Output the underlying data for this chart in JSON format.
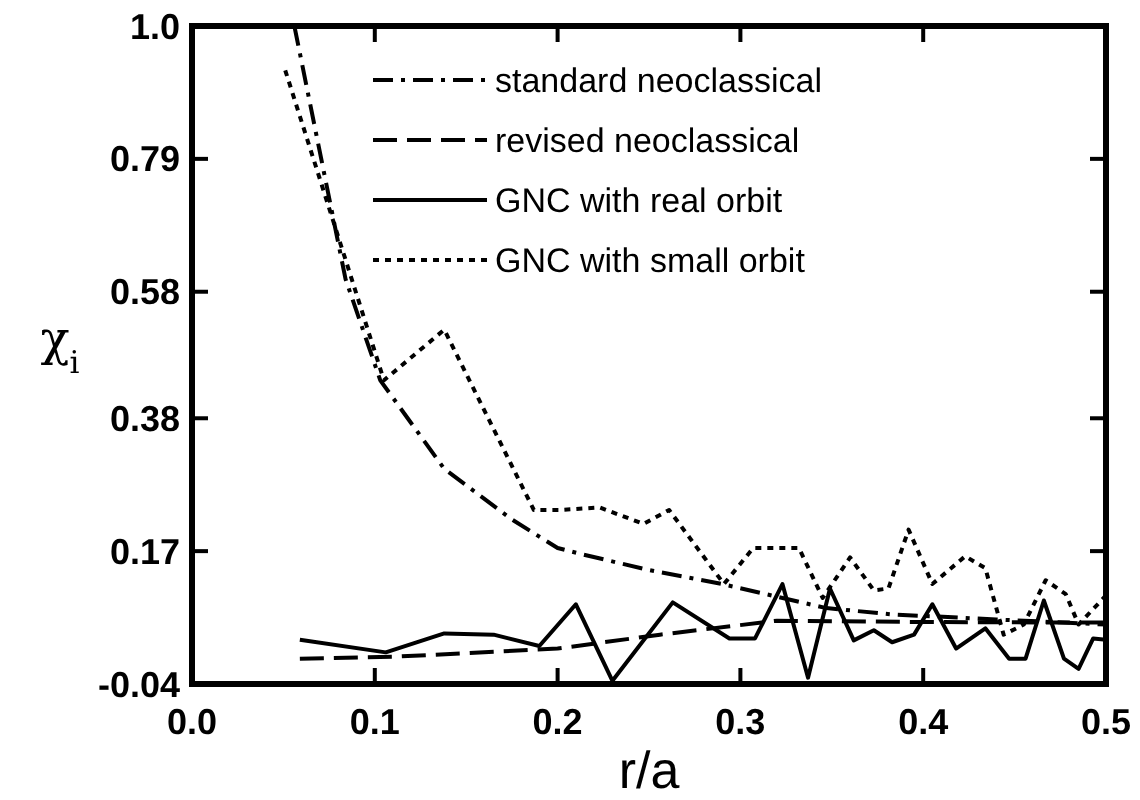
{
  "chart_data": {
    "type": "line",
    "xlabel": "r/a",
    "ylabel": "χ$_{i}$",
    "xlim": [
      0,
      0.5
    ],
    "ylim": [
      -0.04,
      1.0
    ],
    "xticks": [
      {
        "value": 0,
        "label": "0.0"
      },
      0.1,
      0.2,
      0.3,
      0.4,
      0.5
    ],
    "yticks": [
      -0.04,
      0.17,
      0.38,
      0.58,
      0.79,
      {
        "value": 1,
        "label": "1.0"
      }
    ],
    "legend": "top",
    "grid": false,
    "series": [
      {
        "name": "standard neoclassical",
        "color": "#000000",
        "line_style": "dashdot",
        "x": [
          0.056,
          0.084,
          0.103,
          0.138,
          0.175,
          0.2,
          0.212,
          0.25,
          0.29,
          0.347,
          0.383,
          0.44,
          0.5
        ],
        "values": [
          1.0,
          0.6,
          0.44,
          0.3,
          0.22,
          0.175,
          0.166,
          0.14,
          0.118,
          0.08,
          0.07,
          0.062,
          0.054
        ]
      },
      {
        "name": "revised neoclassical",
        "color": "#000000",
        "line_style": "dashed",
        "x": [
          0.059,
          0.11,
          0.2,
          0.256,
          0.32,
          0.4,
          0.5
        ],
        "values": [
          0.0,
          0.003,
          0.016,
          0.038,
          0.06,
          0.058,
          0.057
        ]
      },
      {
        "name": "GNC with real orbit",
        "color": "#000000",
        "line_style": "solid",
        "x": [
          0.059,
          0.106,
          0.138,
          0.165,
          0.19,
          0.21,
          0.23,
          0.263,
          0.294,
          0.308,
          0.323,
          0.337,
          0.349,
          0.362,
          0.373,
          0.383,
          0.395,
          0.405,
          0.418,
          0.434,
          0.447,
          0.456,
          0.466,
          0.477,
          0.485,
          0.493,
          0.5
        ],
        "values": [
          0.03,
          0.01,
          0.04,
          0.038,
          0.02,
          0.086,
          -0.035,
          0.089,
          0.032,
          0.032,
          0.118,
          -0.03,
          0.111,
          0.029,
          0.045,
          0.026,
          0.038,
          0.086,
          0.016,
          0.048,
          0.0,
          0.0,
          0.092,
          0.0,
          -0.016,
          0.032,
          0.03
        ]
      },
      {
        "name": "GNC with small orbit",
        "color": "#000000",
        "line_style": "dotted",
        "x": [
          0.051,
          0.105,
          0.138,
          0.187,
          0.201,
          0.223,
          0.247,
          0.261,
          0.291,
          0.307,
          0.332,
          0.345,
          0.36,
          0.373,
          0.381,
          0.392,
          0.405,
          0.423,
          0.434,
          0.444,
          0.455,
          0.467,
          0.478,
          0.485,
          0.5
        ],
        "values": [
          0.93,
          0.44,
          0.52,
          0.235,
          0.235,
          0.239,
          0.213,
          0.235,
          0.118,
          0.175,
          0.175,
          0.096,
          0.16,
          0.108,
          0.111,
          0.204,
          0.118,
          0.162,
          0.143,
          0.038,
          0.054,
          0.124,
          0.102,
          0.054,
          0.1
        ]
      }
    ]
  }
}
